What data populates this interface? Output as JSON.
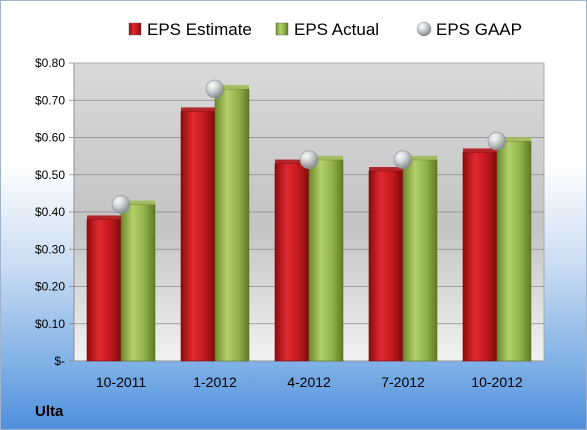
{
  "company_label": "Ulta",
  "chart_data": {
    "type": "bar",
    "categories": [
      "10-2011",
      "1-2012",
      "4-2012",
      "7-2012",
      "10-2012"
    ],
    "series": [
      {
        "name": "EPS Estimate",
        "kind": "bar",
        "color": "#c0181e",
        "values": [
          0.38,
          0.67,
          0.53,
          0.51,
          0.56
        ]
      },
      {
        "name": "EPS Actual",
        "kind": "bar",
        "color": "#8fb04a",
        "values": [
          0.42,
          0.73,
          0.54,
          0.54,
          0.59
        ]
      },
      {
        "name": "EPS GAAP",
        "kind": "marker",
        "color": "#b8bcc2",
        "values": [
          0.42,
          0.73,
          0.54,
          0.54,
          0.59
        ]
      }
    ],
    "ylim": [
      0,
      0.8
    ],
    "yticks": [
      0,
      0.1,
      0.2,
      0.3,
      0.4,
      0.5,
      0.6,
      0.7,
      0.8
    ],
    "ytick_labels": [
      "$-",
      "$0.10",
      "$0.20",
      "$0.30",
      "$0.40",
      "$0.50",
      "$0.60",
      "$0.70",
      "$0.80"
    ],
    "grid": true,
    "legend_position": "top"
  }
}
